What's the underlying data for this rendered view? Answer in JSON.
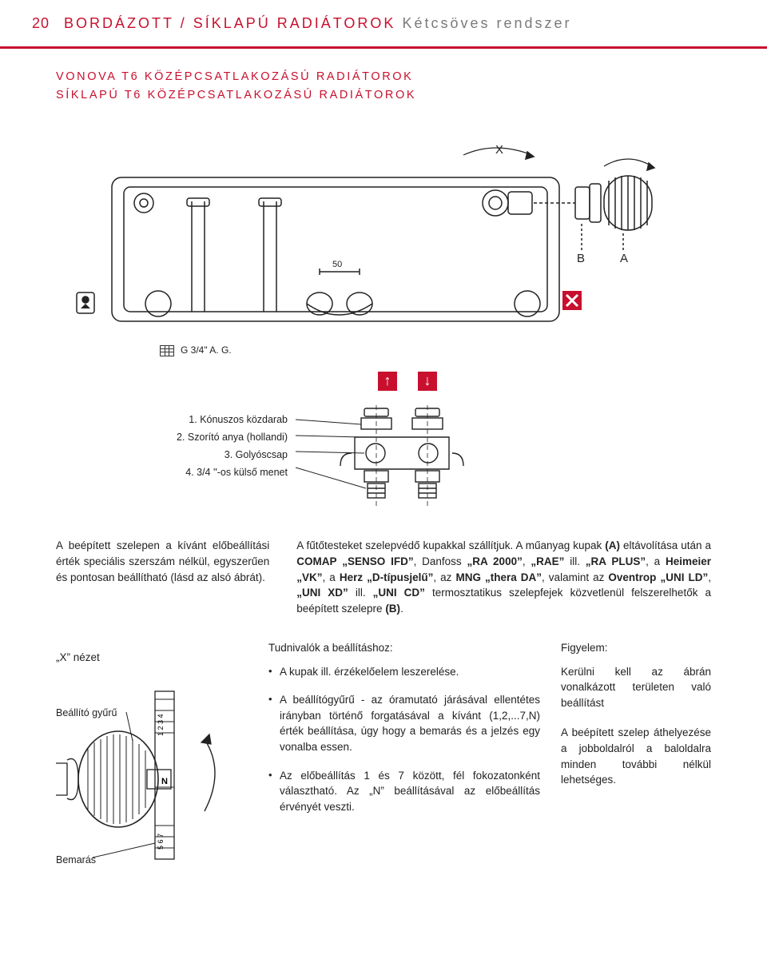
{
  "page_number": "20",
  "header": {
    "red_part": "BORDÁZOTT / SÍKLAPÚ RADIÁTOROK",
    "gray_part": "Kétcsöves rendszer"
  },
  "subheads": {
    "line1": "VONOVA T6 KÖZÉPCSATLAKOZÁSÚ RADIÁTOROK",
    "line2": "SÍKLAPÚ T6 KÖZÉPCSATLAKOZÁSÚ RADIÁTOROK"
  },
  "diagram": {
    "labels": {
      "X": "X",
      "A": "A",
      "B": "B",
      "dim50": "50"
    },
    "thread_label": "G 3/4\" A. G.",
    "colors": {
      "stroke": "#222222",
      "accent": "#c8102e",
      "X_box_bg": "#c8102e",
      "X_box_fg": "#ffffff",
      "white_chip_bg": "#ffffff"
    }
  },
  "legend": {
    "item1": "1. Kónuszos közdarab",
    "item2": "2. Szorító anya (hollandi)",
    "item3": "3. Golyóscsap",
    "item4": "4. 3/4 ''-os külső menet"
  },
  "para_left": "A beépített szelepen a kívánt előbeállítási érték speciális szerszám nélkül, egyszerűen és pontosan beállítható (lásd az alsó ábrát).",
  "para_right": "A fűtőtesteket szelepvédő kupakkal szállítjuk. A műanyag kupak (A) eltávolítása után a COMAP „SENSO IFD”, Danfoss „RA 2000”, „RAE” ill. „RA PLUS”, a Heimeier „VK”, a Herz „D-típusjelű”, az MNG „thera DA”, valamint az Oventrop „UNI LD”, „UNI XD” ill. „UNI CD” termosztatikus szelepfejek közvetlenül felszerelhetők a beépített szelepre (B).",
  "xnezet": {
    "title": "„X” nézet",
    "ring_label": "Beállító gyűrű",
    "notch_label": "Bemarás",
    "scale_top": "1 2 3 4",
    "scale_mid": "N",
    "scale_bot": "5 6 7"
  },
  "tudnivalok": {
    "title": "Tudnivalók a beállításhoz:",
    "b1": "A kupak ill. érzékelőelem leszerelése.",
    "b2": "A beállítógyűrű - az óramutató járásával ellentétes irányban történő forgatásával a kívánt (1,2,...7,N) érték beállítása, úgy hogy a bemarás és a jelzés egy vonalba essen.",
    "b3": "Az előbeállítás 1 és 7 között, fél fokozatonként választható. Az „N” beállításával az előbeállítás érvényét veszti."
  },
  "figyelem": {
    "title": "Figyelem:",
    "p1": "Kerülni kell az ábrán vonalkázott területen való beállítást",
    "p2": "A beépített szelep áthelyezése a jobboldalról a baloldalra minden további nélkül lehetséges."
  }
}
